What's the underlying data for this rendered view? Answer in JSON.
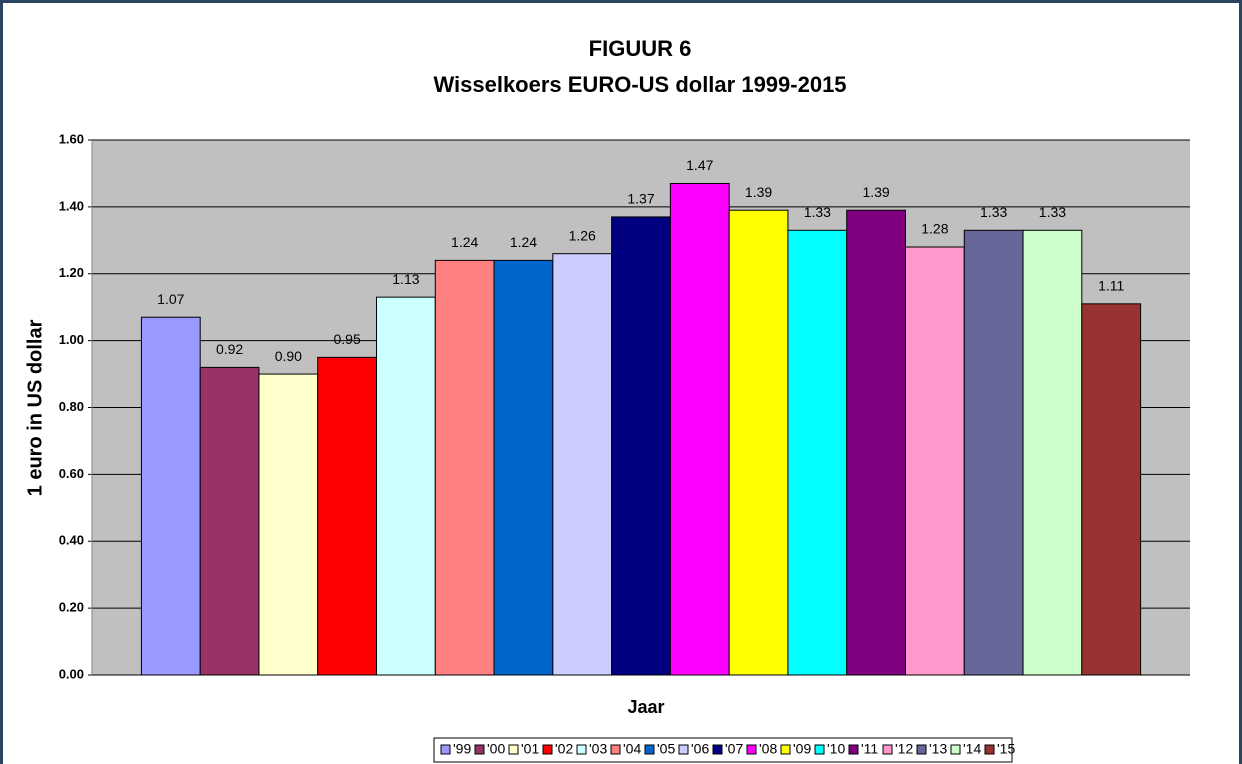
{
  "chart_data": {
    "type": "bar",
    "title": "FIGUUR 6",
    "subtitle": "Wisselkoers EURO-US dollar 1999-2015",
    "y_label": "1 euro in US dollar",
    "x_label": "Jaar",
    "ylim": [
      0,
      1.6
    ],
    "yticks": [
      {
        "value": 0,
        "label": "0.00"
      },
      {
        "value": 0.2,
        "label": "0.20"
      },
      {
        "value": 0.4,
        "label": "0.40"
      },
      {
        "value": 0.6,
        "label": "0.60"
      },
      {
        "value": 0.8,
        "label": "0.80"
      },
      {
        "value": 1,
        "label": "1.00"
      },
      {
        "value": 1.2,
        "label": "1.20"
      },
      {
        "value": 1.4,
        "label": "1.40"
      },
      {
        "value": 1.6,
        "label": "1.60"
      }
    ],
    "grid": true,
    "legend": "bottom",
    "series": [
      {
        "name": "'99",
        "color": "#9999ff",
        "values": [
          1.07
        ]
      },
      {
        "name": "'00",
        "color": "#993366",
        "values": [
          0.92
        ]
      },
      {
        "name": "'01",
        "color": "#ffffcc",
        "values": [
          0.9
        ],
        "value_labels": [
          "0.90"
        ]
      },
      {
        "name": "'02",
        "color": "#ff0000",
        "values": [
          0.95
        ]
      },
      {
        "name": "'03",
        "color": "#ccffff",
        "values": [
          1.13
        ]
      },
      {
        "name": "'04",
        "color": "#ff8080",
        "values": [
          1.24
        ]
      },
      {
        "name": "'05",
        "color": "#0066cc",
        "values": [
          1.24
        ]
      },
      {
        "name": "'06",
        "color": "#ccccff",
        "values": [
          1.26
        ]
      },
      {
        "name": "'07",
        "color": "#000080",
        "values": [
          1.37
        ]
      },
      {
        "name": "'08",
        "color": "#ff00ff",
        "values": [
          1.47
        ]
      },
      {
        "name": "'09",
        "color": "#ffff00",
        "values": [
          1.39
        ]
      },
      {
        "name": "'10",
        "color": "#00ffff",
        "values": [
          1.33
        ]
      },
      {
        "name": "'11",
        "color": "#800080",
        "values": [
          1.39
        ]
      },
      {
        "name": "'12",
        "color": "#ff99cc",
        "values": [
          1.28
        ]
      },
      {
        "name": "'13",
        "color": "#666699",
        "values": [
          1.33
        ]
      },
      {
        "name": "'14",
        "color": "#ccffcc",
        "values": [
          1.33
        ]
      },
      {
        "name": "'15",
        "color": "#993333",
        "values": [
          1.11
        ]
      }
    ]
  }
}
